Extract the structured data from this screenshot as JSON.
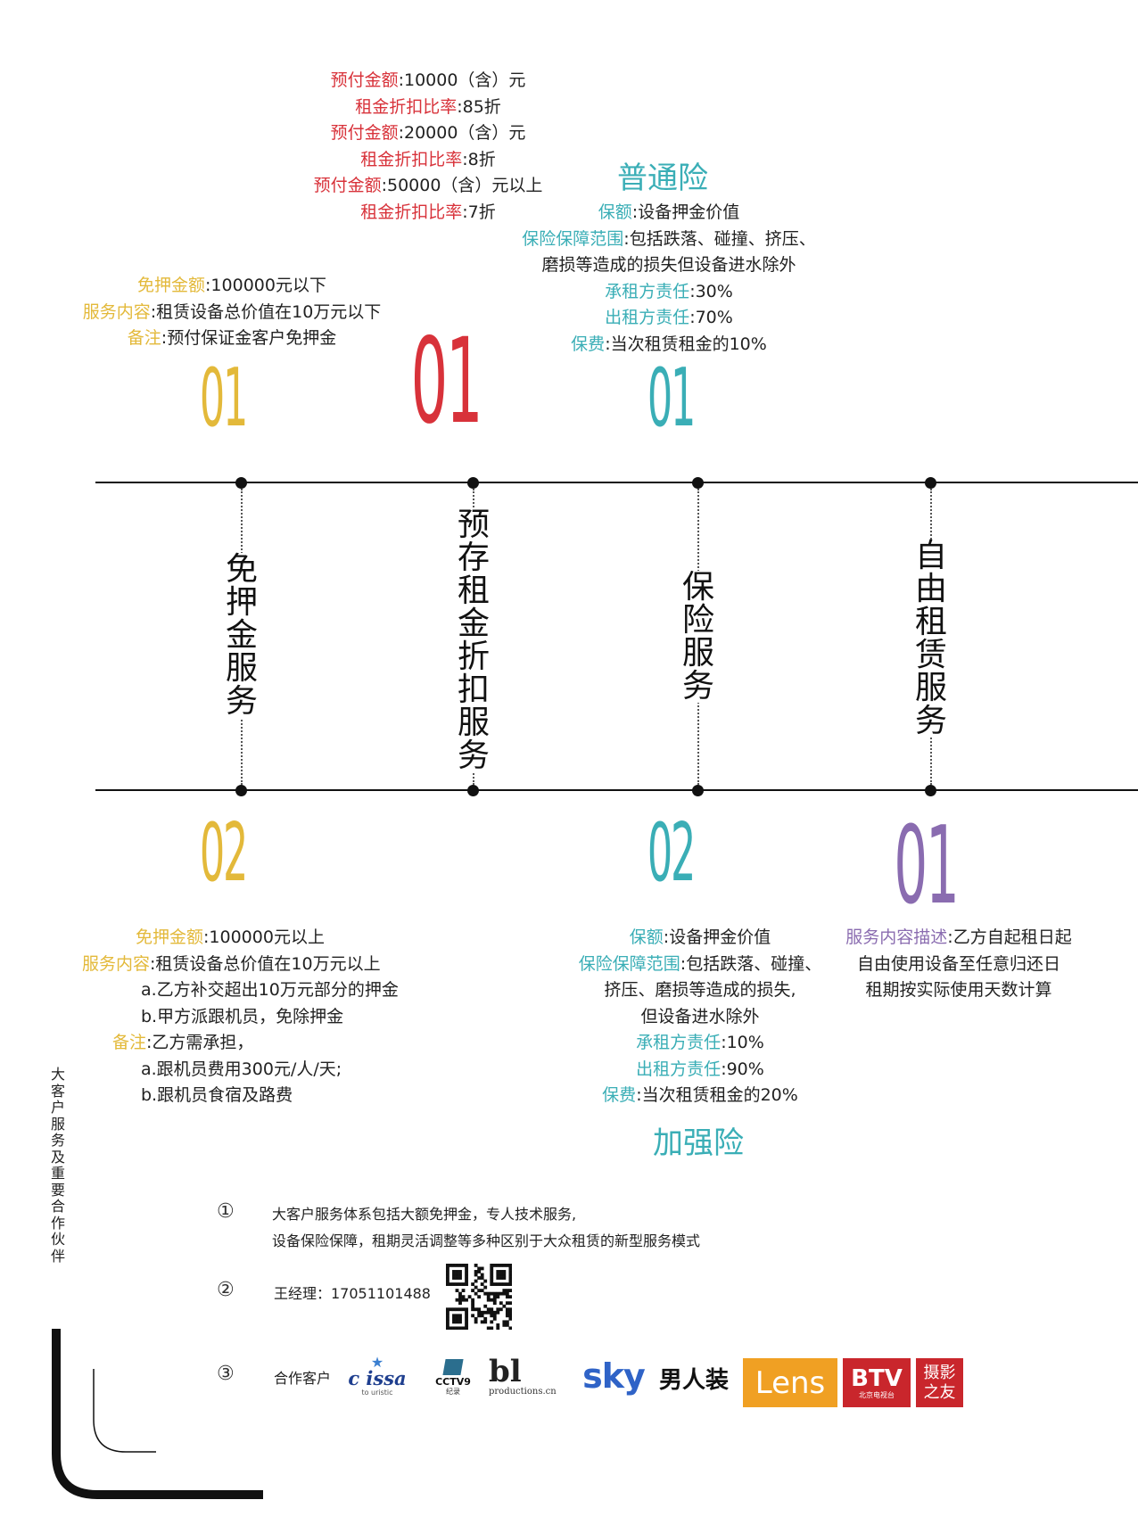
{
  "prepaid": [
    {
      "label": "预付金额",
      "value": ":10000（含）元"
    },
    {
      "label": "租金折扣比率",
      "value": ":85折"
    },
    {
      "label": "预付金额",
      "value": ":20000（含）元"
    },
    {
      "label": "租金折扣比率",
      "value": ":8折"
    },
    {
      "label": "预付金额",
      "value": ":50000（含）元以上"
    },
    {
      "label": "租金折扣比率",
      "value": ":7折"
    }
  ],
  "deposit_free_1": [
    {
      "label": "免押金额",
      "value": ":100000元以下"
    },
    {
      "label": "服务内容",
      "value": ":租赁设备总价值在10万元以下"
    },
    {
      "label": "备注",
      "value": ":预付保证金客户免押金"
    }
  ],
  "insurance_normal": {
    "title": "普通险",
    "lines": [
      {
        "label": "保额",
        "value": ":设备押金价值"
      },
      {
        "label": "保险保障范围",
        "value": ":包括跌落、碰撞、挤压、"
      },
      {
        "label": "",
        "value": "磨损等造成的损失但设备进水除外"
      },
      {
        "label": "承租方责任",
        "value": ":30%"
      },
      {
        "label": "出租方责任",
        "value": ":70%"
      },
      {
        "label": "保费",
        "value": ":当次租赁租金的10%"
      }
    ]
  },
  "numbers": {
    "n_deposit_top": "01",
    "n_prepaid_top": "01",
    "n_insurance_top": "01",
    "n_deposit_bottom": "02",
    "n_insurance_bottom": "02",
    "n_free_bottom": "01"
  },
  "services": {
    "deposit": "免押金服务",
    "prepaid": "预存租金折扣服务",
    "insurance": "保险服务",
    "free": "自由租赁服务"
  },
  "deposit_free_2": [
    {
      "label": "免押金额",
      "value": ":100000元以上"
    },
    {
      "label": "服务内容",
      "value": ":租赁设备总价值在10万元以上"
    },
    {
      "label": "",
      "value": "a.乙方补交超出10万元部分的押金"
    },
    {
      "label": "",
      "value": "b.甲方派跟机员，免除押金"
    },
    {
      "label": "备注",
      "value": ":乙方需承担，"
    },
    {
      "label": "",
      "value": "a.跟机员费用300元/人/天;"
    },
    {
      "label": "",
      "value": "b.跟机员食宿及路费"
    }
  ],
  "insurance_plus": {
    "title": "加强险",
    "lines": [
      {
        "label": "保额",
        "value": ":设备押金价值"
      },
      {
        "label": "保险保障范围",
        "value": ":包括跌落、碰撞、"
      },
      {
        "label": "",
        "value": "挤压、磨损等造成的损失,"
      },
      {
        "label": "",
        "value": "但设备进水除外"
      },
      {
        "label": "承租方责任",
        "value": ":10%"
      },
      {
        "label": "出租方责任",
        "value": ":90%"
      },
      {
        "label": "保费",
        "value": ":当次租赁租金的20%"
      }
    ]
  },
  "free_rental": [
    {
      "label": "服务内容描述",
      "value": ":乙方自起租日起"
    },
    {
      "label": "",
      "value": "自由使用设备至任意归还日"
    },
    {
      "label": "",
      "value": "租期按实际使用天数计算"
    }
  ],
  "sidebar_text": "大客户服务及重要合作伙伴",
  "footer": {
    "c1": "①",
    "c2": "②",
    "c3": "③",
    "line1": "大客户服务体系包括大额免押金，专人技术服务,",
    "line2": "设备保险保障，租期灵活调整等多种区别于大众租赁的新型服务模式",
    "contact": "王经理：17051101488",
    "partners_label": "合作客户"
  },
  "logos": {
    "cissa": "c issa",
    "cissa_sub": "to uristic",
    "cctv": "CCTV9",
    "cctv_sub": "纪录",
    "bl": "bl",
    "bl_sub": "productions.cn",
    "sky": "sky",
    "nanren": "男人装",
    "lens": "Lens",
    "btv": "BTV",
    "btv_sub": "北京电视台",
    "sheying": "摄影之友"
  },
  "colors": {
    "yellow": "#e3b93a",
    "red": "#d8323a",
    "teal": "#3aaeb6",
    "purple": "#8a6cb0"
  }
}
